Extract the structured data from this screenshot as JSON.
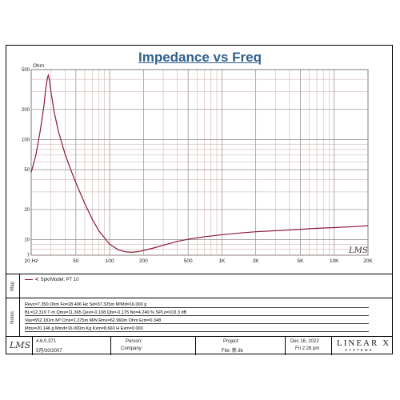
{
  "chart_data": {
    "type": "line",
    "title": "Impedance vs Freq",
    "ylabel": "Ohm",
    "xlim": [
      20,
      20000
    ],
    "ylim": [
      7,
      500
    ],
    "x_scale": "log",
    "y_scale": "log",
    "grid": true,
    "x_tick_labels": [
      {
        "value": 20,
        "label": "20 Hz"
      },
      {
        "value": 50,
        "label": "50"
      },
      {
        "value": 100,
        "label": "100"
      },
      {
        "value": 200,
        "label": "200"
      },
      {
        "value": 500,
        "label": "500"
      },
      {
        "value": 1000,
        "label": "1K"
      },
      {
        "value": 2000,
        "label": "2K"
      },
      {
        "value": 5000,
        "label": "5K"
      },
      {
        "value": 10000,
        "label": "10K"
      },
      {
        "value": 20000,
        "label": "20K"
      }
    ],
    "y_tick_labels": [
      {
        "value": 500,
        "label": "500"
      },
      {
        "value": 200,
        "label": "200"
      },
      {
        "value": 100,
        "label": "100"
      },
      {
        "value": 50,
        "label": "50"
      },
      {
        "value": 20,
        "label": "20"
      },
      {
        "value": 10,
        "label": "10"
      },
      {
        "value": 7,
        "label": "7"
      }
    ],
    "series": [
      {
        "name": "4: SpkrModel: PT 10",
        "color": "#8b1a3c",
        "x": [
          20,
          22,
          24,
          26,
          27,
          28,
          28.4,
          29,
          30,
          32,
          35,
          40,
          45,
          50,
          60,
          70,
          80,
          100,
          120,
          140,
          160,
          180,
          200,
          250,
          300,
          400,
          500,
          700,
          1000,
          1500,
          2000,
          3000,
          5000,
          7000,
          10000,
          15000,
          20000
        ],
        "y": [
          47,
          70,
          120,
          220,
          330,
          420,
          440,
          400,
          300,
          190,
          120,
          72,
          50,
          37,
          23,
          16,
          12.3,
          9.0,
          7.9,
          7.55,
          7.5,
          7.6,
          7.8,
          8.3,
          8.8,
          9.6,
          10.1,
          10.7,
          11.2,
          11.7,
          12.0,
          12.3,
          12.7,
          13.0,
          13.2,
          13.5,
          13.8
        ]
      }
    ]
  },
  "logo_text": "LMS",
  "map_label": "Map",
  "notes_label": "Notes",
  "notes": [
    "Revc=7.350 Ohm  Fo=28.406 Hz  Sd=37.325m M²Md=16.000 g",
    "BL=12.319 T·m  Qms=11.365  Qes=-0.108  Qts=-0.175  No=4.240 %  SPLo=103.3 dB",
    "Vas=552.181m M³ Cms=1.275m M/N  Rms=62.960m Ohm  Erm=0.348",
    "Mms=20.146 g  Mmd=16.000m Kg  Kxm=8.660 H  Exm=0.000"
  ],
  "footer": {
    "logo": "LMS",
    "version": "4.6.0.371",
    "version_date": "5月/30/2007",
    "person_label": "Person:",
    "company_label": "Company:",
    "project_label": "Project:",
    "file_label": "File: 新.lib",
    "date": "Dec 16, 2022",
    "time": "Fri  2:28 pm",
    "brand": "LINEAR X",
    "brand_sub": "SYSTEMS"
  }
}
